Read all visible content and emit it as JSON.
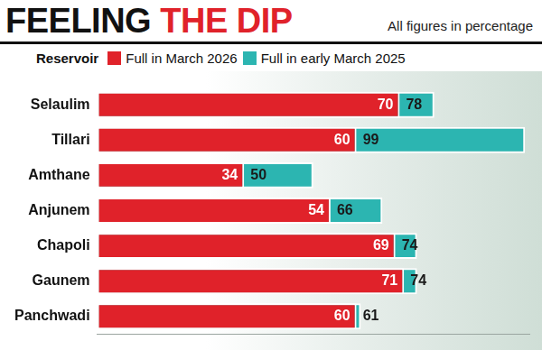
{
  "chart_data": {
    "type": "bar",
    "orientation": "horizontal",
    "title": "FEELING THE DIP",
    "subtitle": "All figures in percentage",
    "y_label": "Reservoir",
    "categories": [
      "Selaulim",
      "Tillari",
      "Amthane",
      "Anjunem",
      "Chapoli",
      "Gaunem",
      "Panchwadi"
    ],
    "series": [
      {
        "name": "Full in March 2026",
        "color": "#e0222a",
        "values": [
          70,
          60,
          34,
          54,
          69,
          71,
          60
        ]
      },
      {
        "name": "Full in early March 2025",
        "color": "#2cb5b1",
        "values": [
          78,
          99,
          50,
          66,
          74,
          74,
          61
        ]
      }
    ],
    "xlim": [
      0,
      100
    ],
    "grid": false,
    "legend": "top",
    "data_labels": true,
    "tick_labels": "y",
    "stacked": false
  }
}
